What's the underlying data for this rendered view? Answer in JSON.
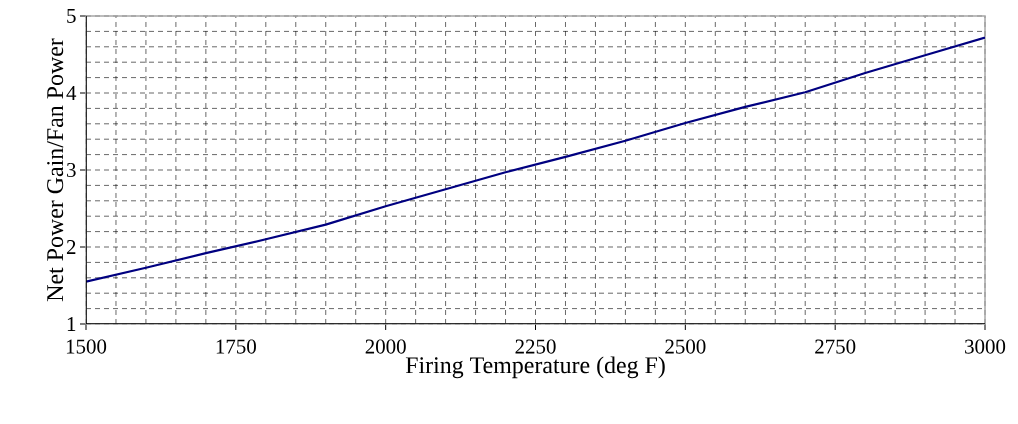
{
  "chart_data": {
    "type": "line",
    "xlabel": "Firing Temperature (deg F)",
    "ylabel": "Net Power Gain/Fan Power",
    "x": [
      1500,
      1600,
      1700,
      1800,
      1900,
      2000,
      2100,
      2200,
      2300,
      2400,
      2500,
      2600,
      2700,
      2800,
      2900,
      3000
    ],
    "series": [
      {
        "color": "#000080",
        "values": [
          1.55,
          1.73,
          1.92,
          2.1,
          2.29,
          2.53,
          2.75,
          2.97,
          3.17,
          3.38,
          3.61,
          3.82,
          4.01,
          4.26,
          4.49,
          4.72
        ]
      }
    ],
    "xlim": [
      1500,
      3000
    ],
    "ylim": [
      1,
      5
    ],
    "xticks": [
      1500,
      1750,
      2000,
      2250,
      2500,
      2750,
      3000
    ],
    "yticks": [
      1,
      2,
      3,
      4,
      5
    ],
    "grid": true,
    "marker": "none",
    "line_style": "solid"
  }
}
